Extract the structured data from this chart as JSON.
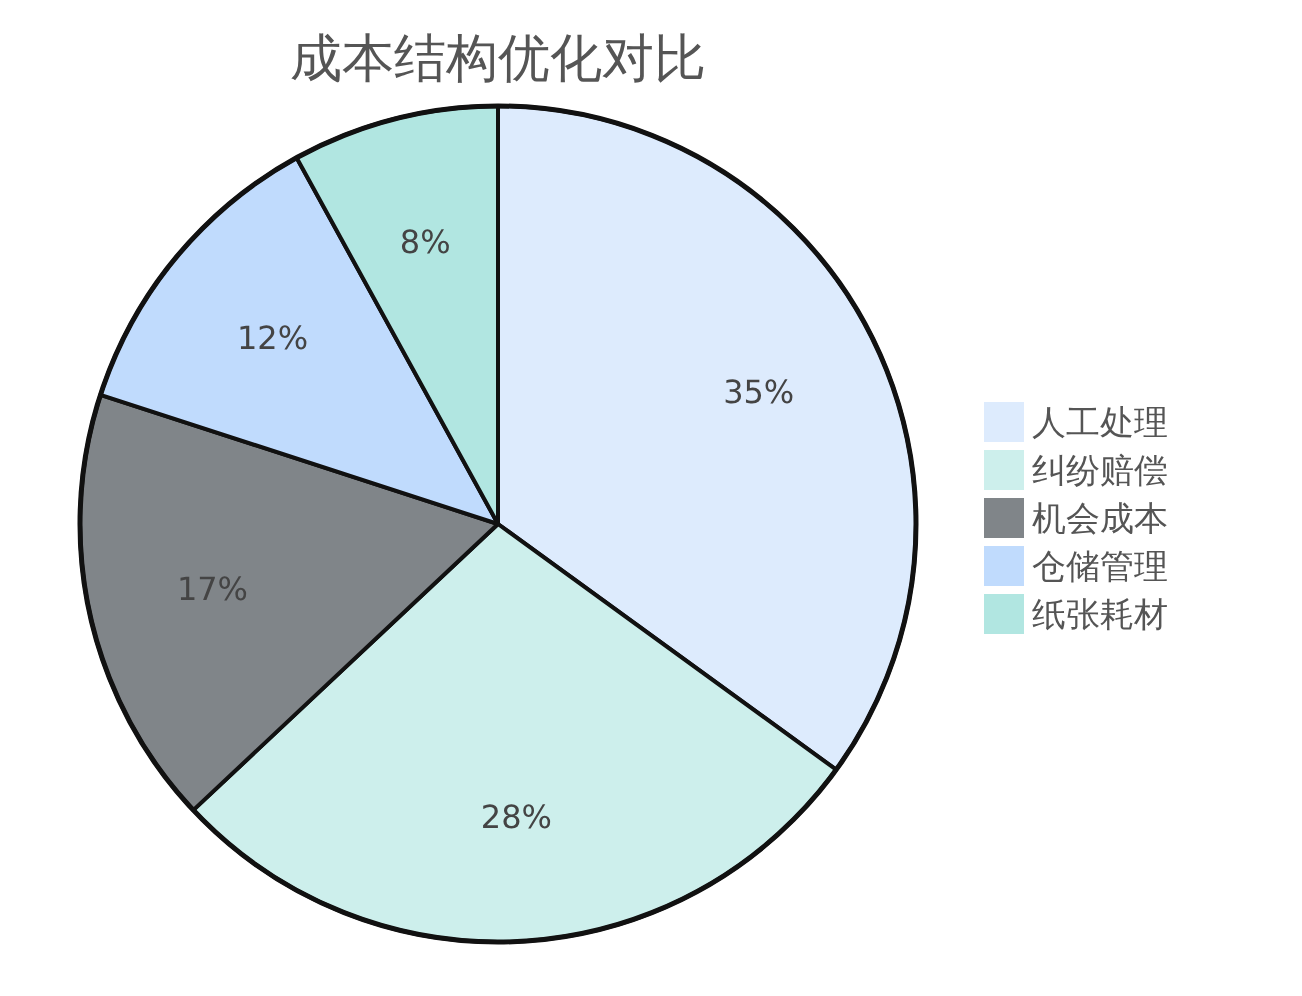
{
  "chart_data": {
    "type": "pie",
    "title": "成本结构优化对比",
    "categories": [
      "人工处理",
      "纠纷赔偿",
      "机会成本",
      "仓储管理",
      "纸张耗材"
    ],
    "values": [
      35,
      28,
      17,
      12,
      8
    ],
    "colors": [
      "#ddebfd",
      "#cdefec",
      "#808589",
      "#c0dbfd",
      "#b1e6e1"
    ],
    "value_labels": [
      "35%",
      "28%",
      "17%",
      "12%",
      "8%"
    ],
    "legend": "right"
  }
}
